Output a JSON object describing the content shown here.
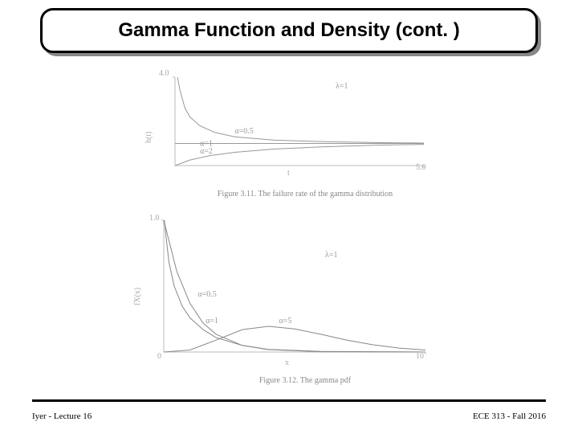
{
  "title": "Gamma Function and Density (cont. )",
  "footer_left": "Iyer - Lecture 16",
  "footer_right": "ECE 313 - Fall 2016",
  "chart1": {
    "type": "line",
    "caption": "Figure 3.11.  The failure rate of the gamma distribution",
    "xlabel": "t",
    "ylabel": "h(t)",
    "x_end_tick": "5.0",
    "y_top_tick": "4.0",
    "param_label": "λ=1",
    "xlim": [
      0,
      5
    ],
    "ylim": [
      0,
      4
    ],
    "axis_color": "#bbbbbb",
    "line_color": "#999999",
    "text_color": "#999999",
    "background_color": "#ffffff",
    "curves": [
      {
        "label": "α=0.5",
        "label_pos": [
          1.2,
          1.45
        ],
        "points": [
          [
            0.05,
            4.0
          ],
          [
            0.1,
            3.4
          ],
          [
            0.2,
            2.6
          ],
          [
            0.3,
            2.2
          ],
          [
            0.5,
            1.8
          ],
          [
            0.8,
            1.5
          ],
          [
            1.2,
            1.3
          ],
          [
            2.0,
            1.15
          ],
          [
            3.0,
            1.08
          ],
          [
            4.0,
            1.04
          ],
          [
            5.0,
            1.02
          ]
        ]
      },
      {
        "label": "α=1",
        "label_pos": [
          0.5,
          0.9
        ],
        "points": [
          [
            0,
            1
          ],
          [
            5,
            1
          ]
        ]
      },
      {
        "label": "α=2",
        "label_pos": [
          0.5,
          0.55
        ],
        "points": [
          [
            0,
            0
          ],
          [
            0.3,
            0.25
          ],
          [
            0.7,
            0.45
          ],
          [
            1.2,
            0.6
          ],
          [
            2.0,
            0.75
          ],
          [
            3.0,
            0.85
          ],
          [
            4.0,
            0.92
          ],
          [
            5.0,
            0.96
          ]
        ]
      }
    ]
  },
  "chart2": {
    "type": "line",
    "caption": "Figure 3.12.  The gamma pdf",
    "xlabel": "x",
    "ylabel": "f_X(x)",
    "x_end_tick": "10",
    "y_top_tick": "1.0",
    "param_label": "λ=1",
    "xlim": [
      0,
      10
    ],
    "ylim": [
      0,
      1
    ],
    "axis_color": "#bbbbbb",
    "line_color": "#888888",
    "text_color": "#999999",
    "background_color": "#ffffff",
    "curves": [
      {
        "label": "α=0.5",
        "label_pos": [
          1.3,
          0.42
        ],
        "points": [
          [
            0.02,
            1.0
          ],
          [
            0.05,
            0.95
          ],
          [
            0.1,
            0.85
          ],
          [
            0.2,
            0.68
          ],
          [
            0.4,
            0.5
          ],
          [
            0.7,
            0.35
          ],
          [
            1.0,
            0.26
          ],
          [
            1.5,
            0.17
          ],
          [
            2.0,
            0.11
          ],
          [
            3.0,
            0.05
          ],
          [
            4.0,
            0.02
          ],
          [
            6.0,
            0.005
          ],
          [
            10.0,
            0.0
          ]
        ]
      },
      {
        "label": "α=1",
        "label_pos": [
          1.6,
          0.22
        ],
        "points": [
          [
            0,
            1.0
          ],
          [
            0.5,
            0.61
          ],
          [
            1.0,
            0.37
          ],
          [
            1.5,
            0.22
          ],
          [
            2.0,
            0.135
          ],
          [
            3.0,
            0.05
          ],
          [
            4.0,
            0.018
          ],
          [
            6.0,
            0.0025
          ],
          [
            10.0,
            0.0
          ]
        ]
      },
      {
        "label": "α=5",
        "label_pos": [
          4.4,
          0.22
        ],
        "points": [
          [
            0,
            0
          ],
          [
            1,
            0.015
          ],
          [
            2,
            0.09
          ],
          [
            3,
            0.17
          ],
          [
            4,
            0.195
          ],
          [
            5,
            0.175
          ],
          [
            6,
            0.135
          ],
          [
            7,
            0.09
          ],
          [
            8,
            0.055
          ],
          [
            9,
            0.03
          ],
          [
            10,
            0.015
          ]
        ]
      }
    ]
  }
}
